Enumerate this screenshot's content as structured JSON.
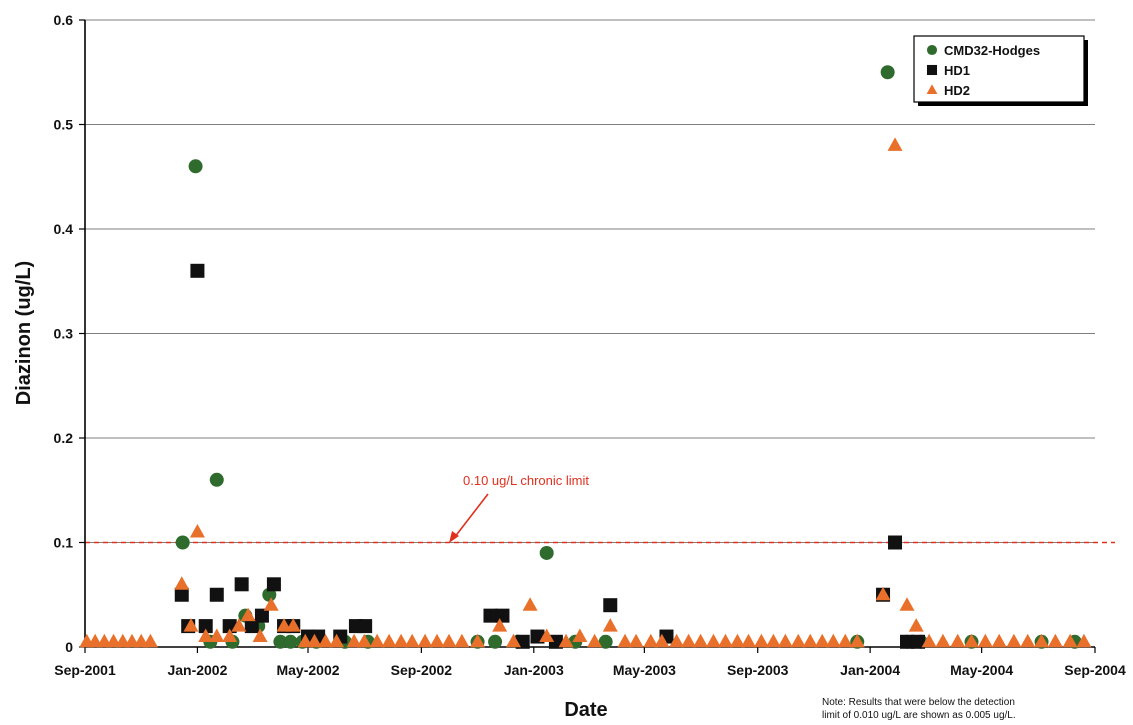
{
  "chart_data": {
    "type": "scatter",
    "title": "",
    "xlabel": "Date",
    "ylabel": "Diazinon (ug/L)",
    "ylim": [
      0,
      0.6
    ],
    "yticks": [
      0,
      0.1,
      0.2,
      0.3,
      0.4,
      0.5,
      0.6
    ],
    "ytick_labels": [
      "0",
      "0.1",
      "0.2",
      "0.3",
      "0.4",
      "0.5",
      "0.6"
    ],
    "xlim": [
      "2001-09-01",
      "2004-09-01"
    ],
    "xticks": [
      "2001-09-01",
      "2002-01-01",
      "2002-05-01",
      "2002-09-01",
      "2003-01-01",
      "2003-05-01",
      "2003-09-01",
      "2004-01-01",
      "2004-05-01",
      "2004-09-01"
    ],
    "xtick_labels": [
      "Sep-2001",
      "Jan-2002",
      "May-2002",
      "Sep-2002",
      "Jan-2003",
      "May-2003",
      "Sep-2003",
      "Jan-2004",
      "May-2004",
      "Sep-2004"
    ],
    "grid": "horizontal",
    "legend_position": "top-right",
    "reference_line": {
      "y": 0.1,
      "label": "0.10 ug/L chronic limit",
      "color": "#e0301e"
    },
    "note": [
      "Note: Results that were below the detection",
      "limit of 0.010 ug/L are shown as 0.005 ug/L."
    ],
    "series": [
      {
        "name": "CMD32-Hodges",
        "marker": "circle",
        "color": "#2f6b2c",
        "points": [
          [
            "2001-12-16",
            0.1
          ],
          [
            "2001-12-30",
            0.46
          ],
          [
            "2002-01-15",
            0.005
          ],
          [
            "2002-01-22",
            0.16
          ],
          [
            "2002-02-08",
            0.005
          ],
          [
            "2002-02-22",
            0.03
          ],
          [
            "2002-03-08",
            0.02
          ],
          [
            "2002-03-20",
            0.05
          ],
          [
            "2002-04-01",
            0.005
          ],
          [
            "2002-04-12",
            0.005
          ],
          [
            "2002-04-25",
            0.005
          ],
          [
            "2002-05-10",
            0.005
          ],
          [
            "2002-06-10",
            0.005
          ],
          [
            "2002-07-05",
            0.005
          ],
          [
            "2002-11-01",
            0.005
          ],
          [
            "2002-11-20",
            0.005
          ],
          [
            "2002-12-15",
            0.005
          ],
          [
            "2003-01-15",
            0.09
          ],
          [
            "2003-02-15",
            0.005
          ],
          [
            "2003-03-20",
            0.005
          ],
          [
            "2003-12-18",
            0.005
          ],
          [
            "2004-01-20",
            0.55
          ],
          [
            "2004-02-10",
            0.005
          ],
          [
            "2004-02-25",
            0.005
          ],
          [
            "2004-04-20",
            0.005
          ],
          [
            "2004-07-05",
            0.005
          ],
          [
            "2004-08-10",
            0.005
          ]
        ]
      },
      {
        "name": "HD1",
        "marker": "square",
        "color": "#111111",
        "points": [
          [
            "2001-12-15",
            0.05
          ],
          [
            "2001-12-22",
            0.02
          ],
          [
            "2002-01-01",
            0.36
          ],
          [
            "2002-01-10",
            0.02
          ],
          [
            "2002-01-22",
            0.05
          ],
          [
            "2002-02-05",
            0.02
          ],
          [
            "2002-02-18",
            0.06
          ],
          [
            "2002-03-01",
            0.02
          ],
          [
            "2002-03-12",
            0.03
          ],
          [
            "2002-03-25",
            0.06
          ],
          [
            "2002-04-05",
            0.02
          ],
          [
            "2002-04-15",
            0.02
          ],
          [
            "2002-05-01",
            0.01
          ],
          [
            "2002-05-12",
            0.01
          ],
          [
            "2002-06-05",
            0.01
          ],
          [
            "2002-06-22",
            0.02
          ],
          [
            "2002-07-02",
            0.02
          ],
          [
            "2002-11-15",
            0.03
          ],
          [
            "2002-11-28",
            0.03
          ],
          [
            "2002-12-20",
            0.005
          ],
          [
            "2003-01-05",
            0.01
          ],
          [
            "2003-01-25",
            0.005
          ],
          [
            "2003-03-25",
            0.04
          ],
          [
            "2003-05-25",
            0.01
          ],
          [
            "2004-01-15",
            0.05
          ],
          [
            "2004-01-28",
            0.1
          ],
          [
            "2004-02-10",
            0.005
          ],
          [
            "2004-02-22",
            0.005
          ]
        ]
      },
      {
        "name": "HD2",
        "marker": "triangle",
        "color": "#e8702a",
        "points": [
          [
            "2001-09-03",
            0.005
          ],
          [
            "2001-09-12",
            0.005
          ],
          [
            "2001-09-22",
            0.005
          ],
          [
            "2001-10-02",
            0.005
          ],
          [
            "2001-10-12",
            0.005
          ],
          [
            "2001-10-22",
            0.005
          ],
          [
            "2001-11-01",
            0.005
          ],
          [
            "2001-11-11",
            0.005
          ],
          [
            "2001-12-15",
            0.06
          ],
          [
            "2001-12-25",
            0.02
          ],
          [
            "2002-01-01",
            0.11
          ],
          [
            "2002-01-10",
            0.01
          ],
          [
            "2002-01-22",
            0.01
          ],
          [
            "2002-02-05",
            0.01
          ],
          [
            "2002-02-15",
            0.02
          ],
          [
            "2002-02-25",
            0.03
          ],
          [
            "2002-03-10",
            0.01
          ],
          [
            "2002-03-22",
            0.04
          ],
          [
            "2002-04-05",
            0.02
          ],
          [
            "2002-04-15",
            0.02
          ],
          [
            "2002-04-28",
            0.005
          ],
          [
            "2002-05-08",
            0.005
          ],
          [
            "2002-05-20",
            0.005
          ],
          [
            "2002-06-01",
            0.005
          ],
          [
            "2002-06-20",
            0.005
          ],
          [
            "2002-07-01",
            0.005
          ],
          [
            "2002-07-15",
            0.005
          ],
          [
            "2002-07-28",
            0.005
          ],
          [
            "2002-08-10",
            0.005
          ],
          [
            "2002-08-22",
            0.005
          ],
          [
            "2002-09-05",
            0.005
          ],
          [
            "2002-09-18",
            0.005
          ],
          [
            "2002-10-01",
            0.005
          ],
          [
            "2002-10-15",
            0.005
          ],
          [
            "2002-11-01",
            0.005
          ],
          [
            "2002-11-25",
            0.02
          ],
          [
            "2002-12-10",
            0.005
          ],
          [
            "2002-12-28",
            0.04
          ],
          [
            "2003-01-15",
            0.01
          ],
          [
            "2003-02-05",
            0.005
          ],
          [
            "2003-02-20",
            0.01
          ],
          [
            "2003-03-08",
            0.005
          ],
          [
            "2003-03-25",
            0.02
          ],
          [
            "2003-04-10",
            0.005
          ],
          [
            "2003-04-22",
            0.005
          ],
          [
            "2003-05-08",
            0.005
          ],
          [
            "2003-05-20",
            0.005
          ],
          [
            "2003-06-05",
            0.005
          ],
          [
            "2003-06-18",
            0.005
          ],
          [
            "2003-07-01",
            0.005
          ],
          [
            "2003-07-15",
            0.005
          ],
          [
            "2003-07-28",
            0.005
          ],
          [
            "2003-08-10",
            0.005
          ],
          [
            "2003-08-22",
            0.005
          ],
          [
            "2003-09-05",
            0.005
          ],
          [
            "2003-09-18",
            0.005
          ],
          [
            "2003-10-01",
            0.005
          ],
          [
            "2003-10-15",
            0.005
          ],
          [
            "2003-10-28",
            0.005
          ],
          [
            "2003-11-10",
            0.005
          ],
          [
            "2003-11-22",
            0.005
          ],
          [
            "2003-12-05",
            0.005
          ],
          [
            "2003-12-18",
            0.005
          ],
          [
            "2004-01-15",
            0.05
          ],
          [
            "2004-01-28",
            0.48
          ],
          [
            "2004-02-10",
            0.04
          ],
          [
            "2004-02-20",
            0.02
          ],
          [
            "2004-03-05",
            0.005
          ],
          [
            "2004-03-20",
            0.005
          ],
          [
            "2004-04-05",
            0.005
          ],
          [
            "2004-04-20",
            0.005
          ],
          [
            "2004-05-05",
            0.005
          ],
          [
            "2004-05-20",
            0.005
          ],
          [
            "2004-06-05",
            0.005
          ],
          [
            "2004-06-20",
            0.005
          ],
          [
            "2004-07-05",
            0.005
          ],
          [
            "2004-07-20",
            0.005
          ],
          [
            "2004-08-05",
            0.005
          ],
          [
            "2004-08-20",
            0.005
          ]
        ]
      }
    ]
  }
}
